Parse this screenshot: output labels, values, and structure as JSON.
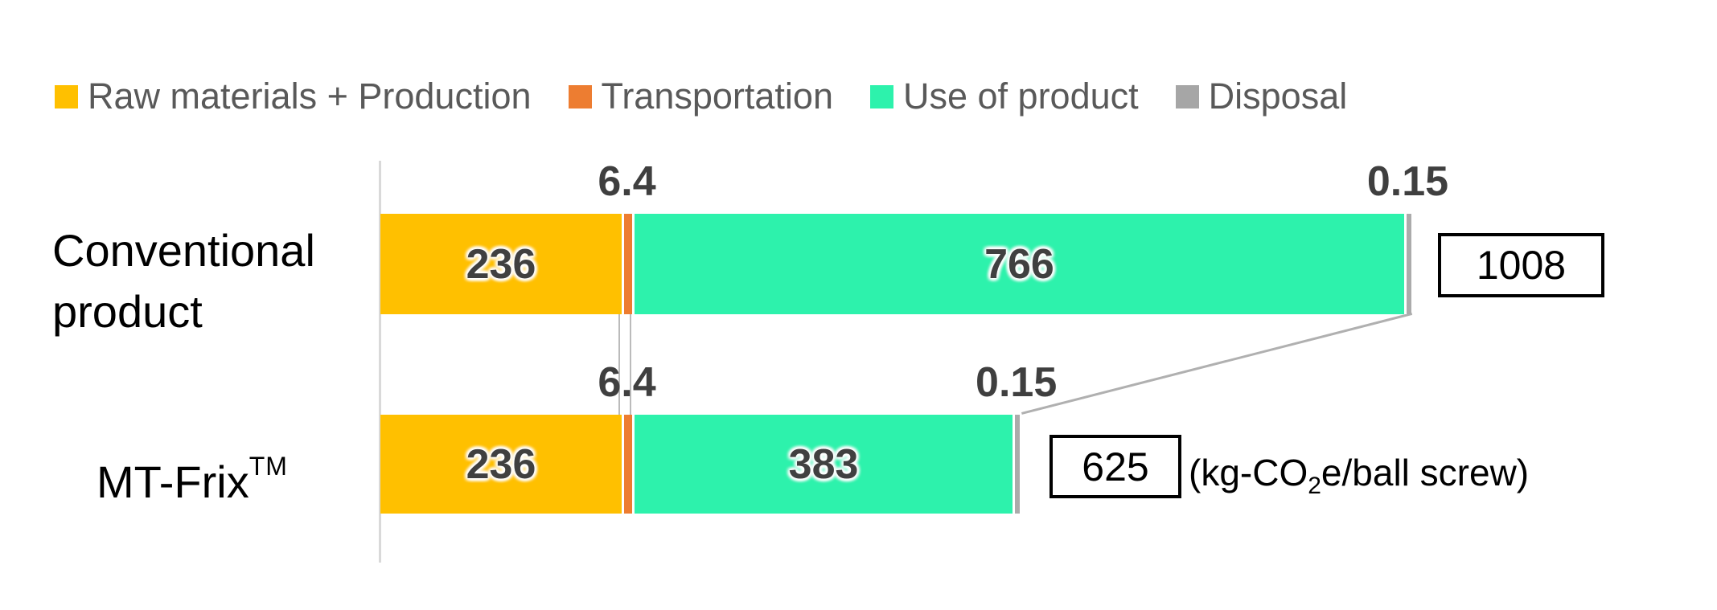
{
  "chart_data": {
    "type": "bar",
    "orientation": "horizontal",
    "stacked": true,
    "legend_position": "top",
    "grid": false,
    "series": [
      {
        "name": "Raw materials + Production",
        "color": "#FFC000"
      },
      {
        "name": "Transportation",
        "color": "#ED7D31"
      },
      {
        "name": "Use of product",
        "color": "#2DF2AC"
      },
      {
        "name": "Disposal",
        "color": "#ABABAB"
      }
    ],
    "categories": [
      {
        "label_lines": [
          "Conventional",
          "product"
        ],
        "trademark": ""
      },
      {
        "label_lines": [
          "MT-Frix"
        ],
        "trademark": "TM"
      }
    ],
    "rows": [
      {
        "category": "Conventional product",
        "values": [
          236,
          6.4,
          766,
          0.15
        ],
        "labels": [
          "236",
          "6.4",
          "766",
          "0.15"
        ],
        "total": "1008"
      },
      {
        "category": "MT-Frix",
        "values": [
          236,
          6.4,
          383,
          0.15
        ],
        "labels": [
          "236",
          "6.4",
          "383",
          "0.15"
        ],
        "total": "625"
      }
    ],
    "unit_label": {
      "prefix": "(kg-CO",
      "sub": "2",
      "suffix": "e/ball screw)"
    },
    "colors": {
      "axis_line": "#D9D9D9",
      "series_line": "#BBBBBB",
      "value_label": "#404040",
      "legend_text": "#595959"
    }
  }
}
